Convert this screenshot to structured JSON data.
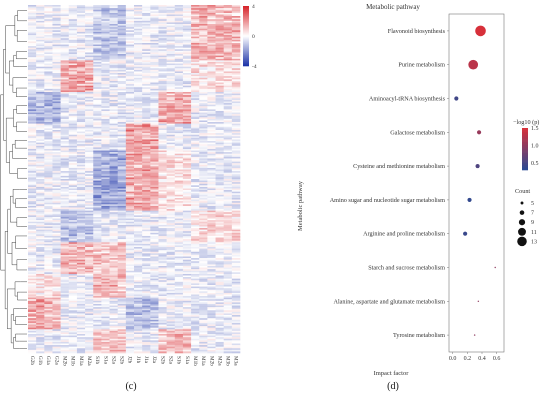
{
  "panel_labels": {
    "c": "(c)",
    "d": "(d)"
  },
  "chart_data": [
    {
      "type": "heatmap",
      "panel": "(c)",
      "title": "",
      "colorbar": {
        "ticks": [
          "4",
          "0",
          "-4"
        ],
        "range": [
          -4,
          4
        ],
        "colors": {
          "low": "#1f35a8",
          "mid": "#ffffff",
          "high": "#d7262c"
        }
      },
      "columns": [
        "G2b",
        "G1b",
        "G1a",
        "G2a",
        "M2b",
        "M1b",
        "M1a",
        "M2a",
        "S1b",
        "S1a",
        "S2a",
        "S2b",
        "J2b",
        "J1b",
        "J1a",
        "J2a",
        "S2b",
        "S2a",
        "S1b",
        "S1a",
        "M1b",
        "M1a",
        "M2b",
        "M2a",
        "M3b",
        "M3a"
      ],
      "row_count": 220,
      "dendrogram": "rows, left side"
    },
    {
      "type": "scatter",
      "panel": "(d)",
      "title": "Metabolic pathway",
      "xlabel": "Impact factor",
      "ylabel": "Metabolic pathway",
      "xlim": [
        -0.05,
        0.7
      ],
      "xticks": [
        "0.0",
        "0.2",
        "0.4",
        "0.6"
      ],
      "xtick_values": [
        0.0,
        0.2,
        0.4,
        0.6
      ],
      "points": [
        {
          "pathway": "Flavonoid biosynthesis",
          "impact": 0.38,
          "neglog10p": 1.5,
          "count": 13
        },
        {
          "pathway": "Purine metabolism",
          "impact": 0.28,
          "neglog10p": 1.3,
          "count": 12
        },
        {
          "pathway": "Aminoacyl-tRNA biosynthesis",
          "impact": 0.05,
          "neglog10p": 0.45,
          "count": 6
        },
        {
          "pathway": "Galactose metabolism",
          "impact": 0.36,
          "neglog10p": 1.05,
          "count": 6
        },
        {
          "pathway": "Cysteine and methionine metabolism",
          "impact": 0.34,
          "neglog10p": 0.55,
          "count": 6
        },
        {
          "pathway": "Amino sugar and nucleotide sugar metabolism",
          "impact": 0.23,
          "neglog10p": 0.35,
          "count": 6
        },
        {
          "pathway": "Arginine and proline metabolism",
          "impact": 0.17,
          "neglog10p": 0.4,
          "count": 6
        },
        {
          "pathway": "Starch and sucrose metabolism",
          "impact": 0.58,
          "neglog10p": 1.0,
          "count": 3
        },
        {
          "pathway": "Alanine, aspartate and glutamate metabolism",
          "impact": 0.35,
          "neglog10p": 1.0,
          "count": 3
        },
        {
          "pathway": "Tyrosine metabolism",
          "impact": 0.3,
          "neglog10p": 1.0,
          "count": 3
        }
      ],
      "color_legend": {
        "title": "−log10 (p)",
        "ticks": [
          "1.5",
          "1.0",
          "0.5"
        ],
        "tick_values": [
          1.5,
          1.0,
          0.5
        ],
        "range": [
          0.3,
          1.5
        ],
        "low_color": "#2b4a92",
        "high_color": "#d7303a"
      },
      "size_legend": {
        "title": "Count",
        "values": [
          5,
          7,
          9,
          11,
          13
        ]
      },
      "grid": false
    }
  ]
}
